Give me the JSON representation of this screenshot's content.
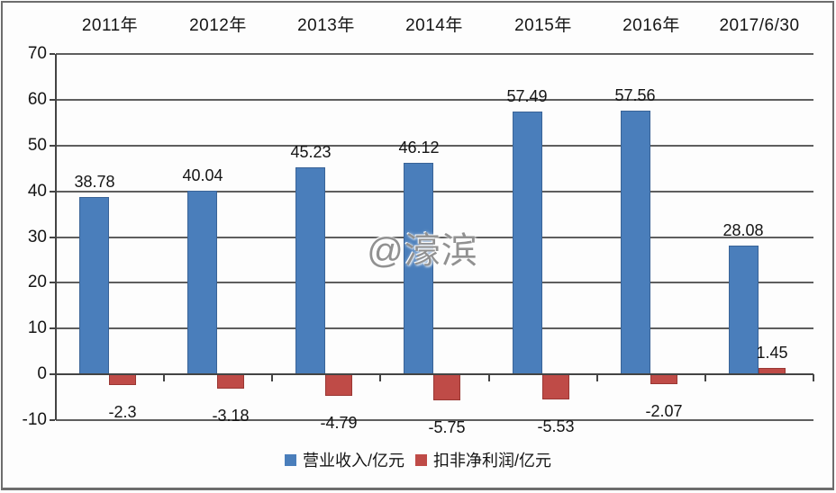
{
  "chart_data": {
    "type": "bar",
    "title": "",
    "xlabel": "",
    "ylabel": "",
    "categories": [
      "2011年",
      "2012年",
      "2013年",
      "2014年",
      "2015年",
      "2016年",
      "2017/6/30"
    ],
    "series": [
      {
        "name": "营业收入/亿元",
        "color": "#4a7ebb",
        "values": [
          38.78,
          40.04,
          45.23,
          46.12,
          57.49,
          57.56,
          28.08
        ]
      },
      {
        "name": "扣非净利润/亿元",
        "color": "#bf4b47",
        "values": [
          -2.3,
          -3.18,
          -4.79,
          -5.75,
          -5.53,
          -2.07,
          1.45
        ]
      }
    ],
    "ylim": [
      -10,
      70
    ],
    "ytick_step": 10,
    "grid": true,
    "legend_position": "bottom",
    "category_labels_position": "top"
  },
  "watermark": {
    "text": "@濠滨"
  },
  "colors": {
    "revenue_bar": "#4a7ebb",
    "profit_bar": "#bf4b47",
    "gridline": "#5e5e5e",
    "axis": "#444444",
    "text": "#151515",
    "watermark": "#919191",
    "frame": "#6d6d6d",
    "background": "#fdfdfd"
  }
}
